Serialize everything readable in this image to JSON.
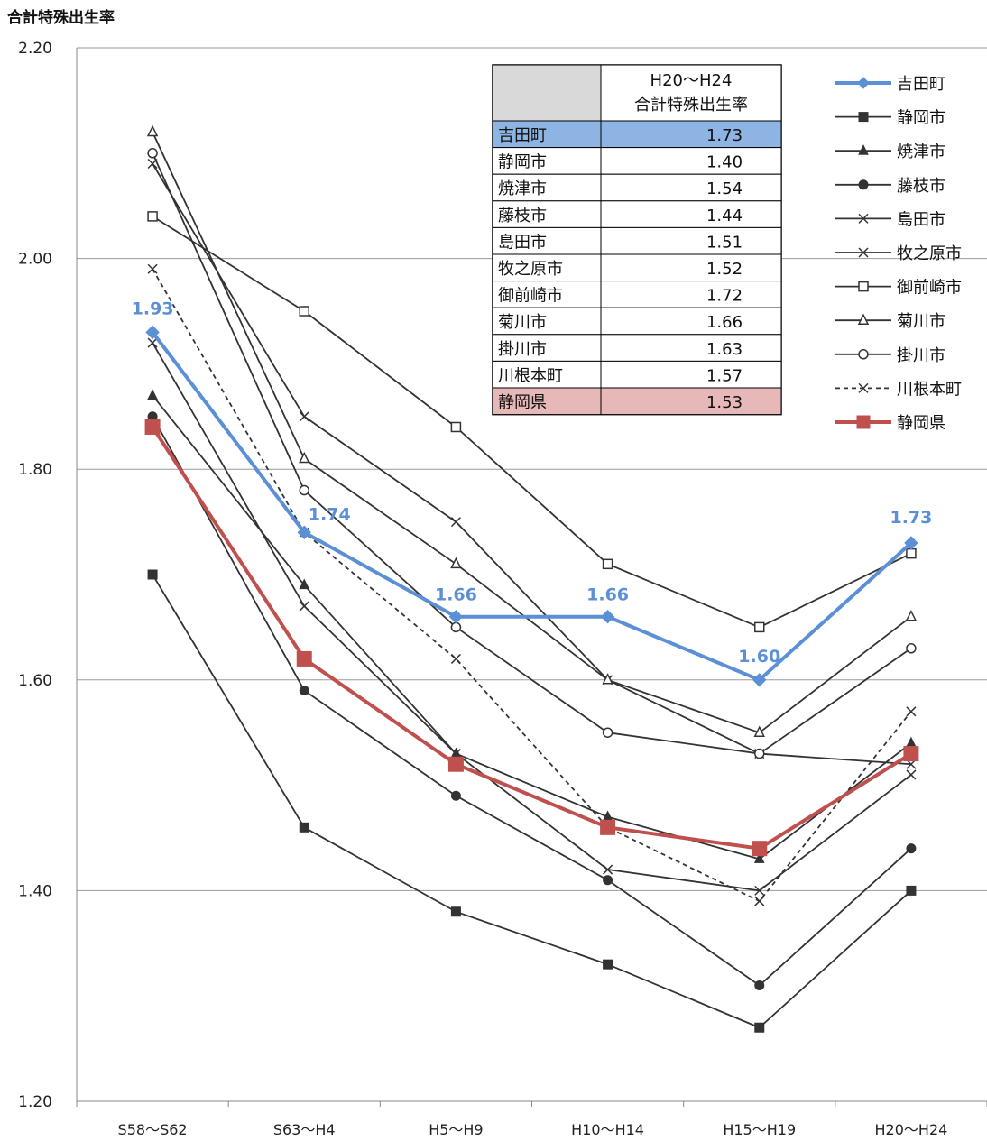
{
  "chart_data": {
    "type": "line",
    "title": "合計特殊出生率",
    "categories": [
      "S58〜S62",
      "S63〜H4",
      "H5〜H9",
      "H10〜H14",
      "H15〜H19",
      "H20〜H24"
    ],
    "ylim": [
      1.2,
      2.2
    ],
    "yticks": [
      "1.20",
      "1.40",
      "1.60",
      "1.80",
      "2.00",
      "2.20"
    ],
    "grid": true,
    "legend_position": "right",
    "series": [
      {
        "name": "吉田町",
        "values": [
          1.93,
          1.74,
          1.66,
          1.66,
          1.6,
          1.73
        ],
        "color": "#5b8fd6",
        "marker": "diamond",
        "dash": false,
        "width": "thick",
        "labels": [
          "1.93",
          "1.74",
          "1.66",
          "1.66",
          "1.60",
          "1.73"
        ]
      },
      {
        "name": "静岡市",
        "values": [
          1.7,
          1.46,
          1.38,
          1.33,
          1.27,
          1.4
        ],
        "color": "#333333",
        "marker": "square-filled",
        "dash": false,
        "width": "thin"
      },
      {
        "name": "焼津市",
        "values": [
          1.87,
          1.69,
          1.53,
          1.47,
          1.43,
          1.54
        ],
        "color": "#333333",
        "marker": "triangle-filled",
        "dash": false,
        "width": "thin"
      },
      {
        "name": "藤枝市",
        "values": [
          1.85,
          1.59,
          1.49,
          1.41,
          1.31,
          1.44
        ],
        "color": "#333333",
        "marker": "circle-filled",
        "dash": false,
        "width": "thin"
      },
      {
        "name": "島田市",
        "values": [
          1.92,
          1.67,
          1.53,
          1.42,
          1.4,
          1.51
        ],
        "color": "#333333",
        "marker": "x",
        "dash": false,
        "width": "thin"
      },
      {
        "name": "牧之原市",
        "values": [
          2.09,
          1.85,
          1.75,
          1.6,
          1.53,
          1.52
        ],
        "color": "#333333",
        "marker": "x",
        "dash": false,
        "width": "thin"
      },
      {
        "name": "御前崎市",
        "values": [
          2.04,
          1.95,
          1.84,
          1.71,
          1.65,
          1.72
        ],
        "color": "#333333",
        "marker": "square-open",
        "dash": false,
        "width": "thin"
      },
      {
        "name": "菊川市",
        "values": [
          2.12,
          1.81,
          1.71,
          1.6,
          1.55,
          1.66
        ],
        "color": "#333333",
        "marker": "triangle-open",
        "dash": false,
        "width": "thin"
      },
      {
        "name": "掛川市",
        "values": [
          2.1,
          1.78,
          1.65,
          1.55,
          1.53,
          1.63
        ],
        "color": "#333333",
        "marker": "circle-open",
        "dash": false,
        "width": "thin"
      },
      {
        "name": "川根本町",
        "values": [
          1.99,
          1.74,
          1.62,
          1.46,
          1.39,
          1.57
        ],
        "color": "#333333",
        "marker": "x",
        "dash": true,
        "width": "thin"
      },
      {
        "name": "静岡県",
        "values": [
          1.84,
          1.62,
          1.52,
          1.46,
          1.44,
          1.53
        ],
        "color": "#c0504d",
        "marker": "square-filled",
        "dash": false,
        "width": "thick"
      }
    ]
  },
  "table": {
    "header": [
      "H20〜H24",
      "合計特殊出生率"
    ],
    "rows": [
      {
        "name": "吉田町",
        "value": "1.73",
        "highlight": "#8db4e2"
      },
      {
        "name": "静岡市",
        "value": "1.40",
        "highlight": ""
      },
      {
        "name": "焼津市",
        "value": "1.54",
        "highlight": ""
      },
      {
        "name": "藤枝市",
        "value": "1.44",
        "highlight": ""
      },
      {
        "name": "島田市",
        "value": "1.51",
        "highlight": ""
      },
      {
        "name": "牧之原市",
        "value": "1.52",
        "highlight": ""
      },
      {
        "name": "御前崎市",
        "value": "1.72",
        "highlight": ""
      },
      {
        "name": "菊川市",
        "value": "1.66",
        "highlight": ""
      },
      {
        "name": "掛川市",
        "value": "1.63",
        "highlight": ""
      },
      {
        "name": "川根本町",
        "value": "1.57",
        "highlight": ""
      },
      {
        "name": "静岡県",
        "value": "1.53",
        "highlight": "#e6b8b7"
      }
    ],
    "header_bg": "#d9d9d9"
  }
}
